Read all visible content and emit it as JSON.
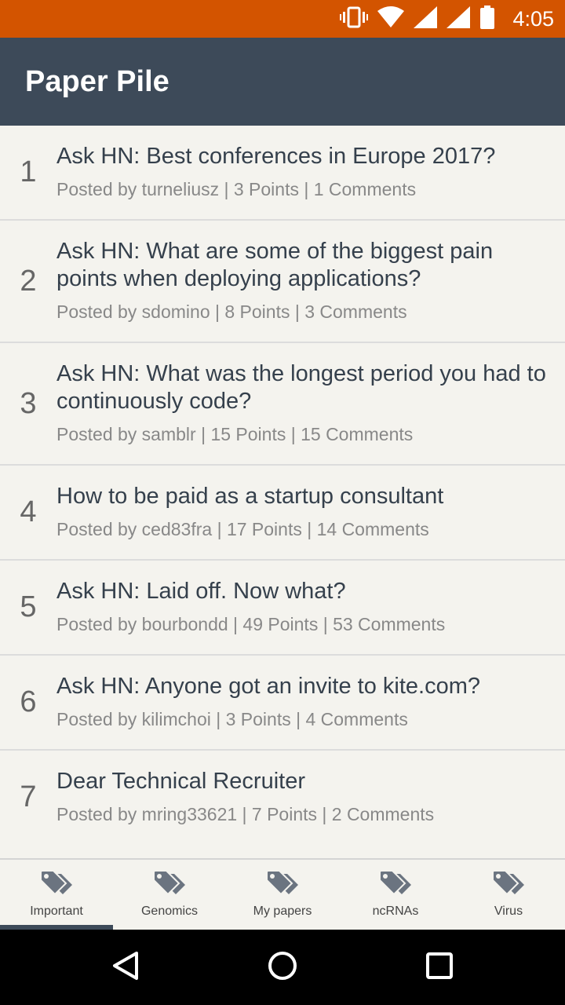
{
  "status_bar": {
    "time": "4:05",
    "icons": [
      "vibrate-icon",
      "wifi-icon",
      "signal-icon",
      "signal-icon",
      "battery-icon"
    ]
  },
  "app_bar": {
    "title": "Paper Pile"
  },
  "stories": [
    {
      "rank": "1",
      "title": "Ask HN: Best conferences in Europe 2017?",
      "meta": "Posted by turneliusz | 3 Points | 1 Comments"
    },
    {
      "rank": "2",
      "title": "Ask HN: What are some of the biggest pain points when deploying applications?",
      "meta": "Posted by sdomino | 8 Points | 3 Comments"
    },
    {
      "rank": "3",
      "title": "Ask HN: What was the longest period you had to continuously code?",
      "meta": "Posted by samblr | 15 Points | 15 Comments"
    },
    {
      "rank": "4",
      "title": "How to be paid as a startup consultant",
      "meta": "Posted by ced83fra | 17 Points | 14 Comments"
    },
    {
      "rank": "5",
      "title": "Ask HN: Laid off. Now what?",
      "meta": "Posted by bourbondd | 49 Points | 53 Comments"
    },
    {
      "rank": "6",
      "title": "Ask HN: Anyone got an invite to kite.com?",
      "meta": "Posted by kilimchoi | 3 Points | 4 Comments"
    },
    {
      "rank": "7",
      "title": "Dear Technical Recruiter",
      "meta": "Posted by mring33621 | 7 Points | 2 Comments"
    }
  ],
  "tabs": [
    {
      "label": "Important",
      "icon": "tag-icon",
      "active": true
    },
    {
      "label": "Genomics",
      "icon": "tag-icon",
      "active": false
    },
    {
      "label": "My papers",
      "icon": "tag-icon",
      "active": false
    },
    {
      "label": "ncRNAs",
      "icon": "tag-icon",
      "active": false
    },
    {
      "label": "Virus",
      "icon": "tag-icon",
      "active": false
    }
  ],
  "colors": {
    "status_bar": "#d35400",
    "app_bar": "#3d4a59",
    "background": "#f4f3ee",
    "icon": "#6b7480"
  },
  "nav_icons": [
    "back-icon",
    "home-icon",
    "recents-icon"
  ]
}
